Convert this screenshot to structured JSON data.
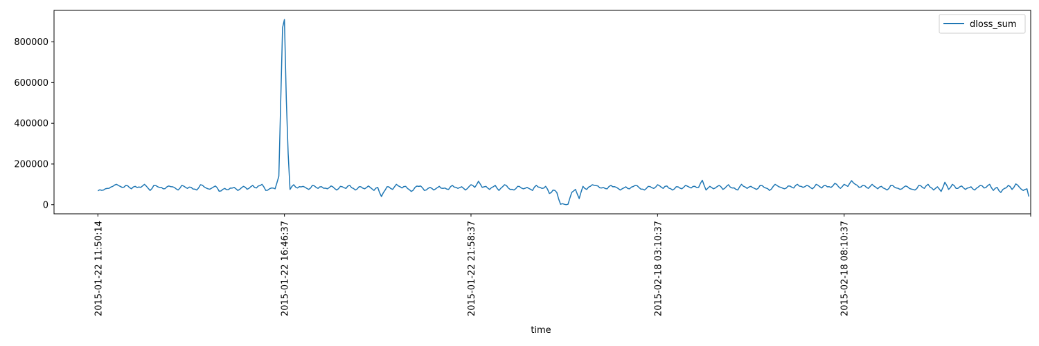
{
  "chart_data": {
    "type": "line",
    "title": "",
    "xlabel": "time",
    "ylabel": "",
    "grid": false,
    "legend_position": "top-right",
    "x_ticks": [
      {
        "index": 0,
        "label": "2015-01-22 11:50:14"
      },
      {
        "index": 100,
        "label": "2015-01-22 16:46:37"
      },
      {
        "index": 200,
        "label": "2015-01-22 21:58:37"
      },
      {
        "index": 300,
        "label": "2015-02-18 03:10:37"
      },
      {
        "index": 400,
        "label": "2015-02-18 08:10:37"
      },
      {
        "index": 500,
        "label": ""
      }
    ],
    "y_ticks": [
      0,
      200000,
      400000,
      600000,
      800000
    ],
    "y_tick_labels": [
      "0",
      "200000",
      "400000",
      "600000",
      "800000"
    ],
    "xlim": [
      -23.5,
      500
    ],
    "ylim": [
      -45000,
      955000
    ],
    "series": [
      {
        "name": "dloss_sum",
        "color": "#1f77b4",
        "anchors": [
          [
            0,
            68000
          ],
          [
            3,
            72000
          ],
          [
            5,
            80000
          ],
          [
            8,
            90000
          ],
          [
            10,
            100000
          ],
          [
            13,
            85000
          ],
          [
            15,
            95000
          ],
          [
            18,
            78000
          ],
          [
            20,
            90000
          ],
          [
            23,
            85000
          ],
          [
            25,
            100000
          ],
          [
            28,
            70000
          ],
          [
            30,
            95000
          ],
          [
            33,
            85000
          ],
          [
            35,
            78000
          ],
          [
            38,
            92000
          ],
          [
            40,
            88000
          ],
          [
            43,
            72000
          ],
          [
            45,
            95000
          ],
          [
            48,
            80000
          ],
          [
            50,
            85000
          ],
          [
            53,
            72000
          ],
          [
            55,
            98000
          ],
          [
            58,
            82000
          ],
          [
            60,
            76000
          ],
          [
            63,
            92000
          ],
          [
            65,
            66000
          ],
          [
            68,
            80000
          ],
          [
            70,
            74000
          ],
          [
            73,
            85000
          ],
          [
            75,
            70000
          ],
          [
            78,
            90000
          ],
          [
            80,
            76000
          ],
          [
            83,
            95000
          ],
          [
            85,
            82000
          ],
          [
            88,
            100000
          ],
          [
            90,
            70000
          ],
          [
            93,
            82000
          ],
          [
            95,
            78000
          ],
          [
            97,
            140000
          ],
          [
            99,
            870000
          ],
          [
            100,
            910000
          ],
          [
            101,
            520000
          ],
          [
            102,
            250000
          ],
          [
            103,
            75000
          ],
          [
            105,
            98000
          ],
          [
            107,
            82000
          ],
          [
            110,
            90000
          ],
          [
            113,
            75000
          ],
          [
            115,
            95000
          ],
          [
            118,
            80000
          ],
          [
            120,
            88000
          ],
          [
            123,
            78000
          ],
          [
            125,
            92000
          ],
          [
            128,
            72000
          ],
          [
            130,
            90000
          ],
          [
            133,
            80000
          ],
          [
            135,
            95000
          ],
          [
            138,
            72000
          ],
          [
            140,
            88000
          ],
          [
            143,
            78000
          ],
          [
            145,
            92000
          ],
          [
            148,
            70000
          ],
          [
            150,
            85000
          ],
          [
            152,
            40000
          ],
          [
            155,
            88000
          ],
          [
            158,
            75000
          ],
          [
            160,
            100000
          ],
          [
            163,
            82000
          ],
          [
            165,
            90000
          ],
          [
            168,
            65000
          ],
          [
            170,
            85000
          ],
          [
            173,
            92000
          ],
          [
            175,
            70000
          ],
          [
            178,
            85000
          ],
          [
            180,
            72000
          ],
          [
            183,
            90000
          ],
          [
            185,
            80000
          ],
          [
            188,
            75000
          ],
          [
            190,
            95000
          ],
          [
            193,
            80000
          ],
          [
            195,
            88000
          ],
          [
            197,
            72000
          ],
          [
            200,
            98000
          ],
          [
            202,
            85000
          ],
          [
            204,
            115000
          ],
          [
            206,
            85000
          ],
          [
            208,
            90000
          ],
          [
            210,
            75000
          ],
          [
            213,
            95000
          ],
          [
            215,
            70000
          ],
          [
            218,
            98000
          ],
          [
            220,
            82000
          ],
          [
            223,
            72000
          ],
          [
            225,
            90000
          ],
          [
            228,
            78000
          ],
          [
            230,
            85000
          ],
          [
            233,
            70000
          ],
          [
            235,
            95000
          ],
          [
            238,
            80000
          ],
          [
            240,
            90000
          ],
          [
            242,
            55000
          ],
          [
            244,
            72000
          ],
          [
            246,
            60000
          ],
          [
            248,
            2000
          ],
          [
            252,
            2000
          ],
          [
            254,
            60000
          ],
          [
            256,
            75000
          ],
          [
            258,
            30000
          ],
          [
            260,
            90000
          ],
          [
            262,
            75000
          ],
          [
            265,
            98000
          ],
          [
            268,
            92000
          ],
          [
            270,
            82000
          ],
          [
            273,
            78000
          ],
          [
            275,
            95000
          ],
          [
            278,
            85000
          ],
          [
            280,
            72000
          ],
          [
            283,
            88000
          ],
          [
            285,
            78000
          ],
          [
            288,
            95000
          ],
          [
            290,
            85000
          ],
          [
            293,
            72000
          ],
          [
            295,
            90000
          ],
          [
            298,
            80000
          ],
          [
            300,
            98000
          ],
          [
            303,
            80000
          ],
          [
            305,
            92000
          ],
          [
            308,
            72000
          ],
          [
            310,
            88000
          ],
          [
            313,
            78000
          ],
          [
            315,
            95000
          ],
          [
            318,
            82000
          ],
          [
            320,
            90000
          ],
          [
            322,
            85000
          ],
          [
            324,
            120000
          ],
          [
            326,
            72000
          ],
          [
            328,
            90000
          ],
          [
            330,
            78000
          ],
          [
            333,
            95000
          ],
          [
            335,
            75000
          ],
          [
            338,
            98000
          ],
          [
            340,
            82000
          ],
          [
            343,
            72000
          ],
          [
            345,
            100000
          ],
          [
            348,
            80000
          ],
          [
            350,
            90000
          ],
          [
            353,
            75000
          ],
          [
            355,
            95000
          ],
          [
            358,
            82000
          ],
          [
            360,
            70000
          ],
          [
            363,
            100000
          ],
          [
            365,
            88000
          ],
          [
            368,
            78000
          ],
          [
            370,
            92000
          ],
          [
            373,
            82000
          ],
          [
            375,
            100000
          ],
          [
            378,
            85000
          ],
          [
            380,
            95000
          ],
          [
            383,
            78000
          ],
          [
            385,
            100000
          ],
          [
            388,
            82000
          ],
          [
            390,
            95000
          ],
          [
            393,
            85000
          ],
          [
            395,
            105000
          ],
          [
            398,
            80000
          ],
          [
            400,
            100000
          ],
          [
            402,
            90000
          ],
          [
            404,
            118000
          ],
          [
            406,
            100000
          ],
          [
            408,
            85000
          ],
          [
            410,
            95000
          ],
          [
            413,
            80000
          ],
          [
            415,
            100000
          ],
          [
            418,
            78000
          ],
          [
            420,
            90000
          ],
          [
            423,
            72000
          ],
          [
            425,
            95000
          ],
          [
            428,
            82000
          ],
          [
            430,
            75000
          ],
          [
            433,
            92000
          ],
          [
            435,
            80000
          ],
          [
            438,
            72000
          ],
          [
            440,
            95000
          ],
          [
            443,
            80000
          ],
          [
            445,
            100000
          ],
          [
            448,
            72000
          ],
          [
            450,
            88000
          ],
          [
            452,
            65000
          ],
          [
            454,
            110000
          ],
          [
            456,
            75000
          ],
          [
            458,
            100000
          ],
          [
            460,
            80000
          ],
          [
            463,
            92000
          ],
          [
            465,
            75000
          ],
          [
            468,
            88000
          ],
          [
            470,
            72000
          ],
          [
            473,
            95000
          ],
          [
            475,
            82000
          ],
          [
            478,
            100000
          ],
          [
            480,
            70000
          ],
          [
            482,
            85000
          ],
          [
            484,
            60000
          ],
          [
            486,
            80000
          ],
          [
            488,
            95000
          ],
          [
            490,
            75000
          ],
          [
            492,
            102000
          ],
          [
            494,
            85000
          ],
          [
            496,
            70000
          ],
          [
            498,
            78000
          ],
          [
            499,
            40000
          ]
        ]
      }
    ]
  }
}
